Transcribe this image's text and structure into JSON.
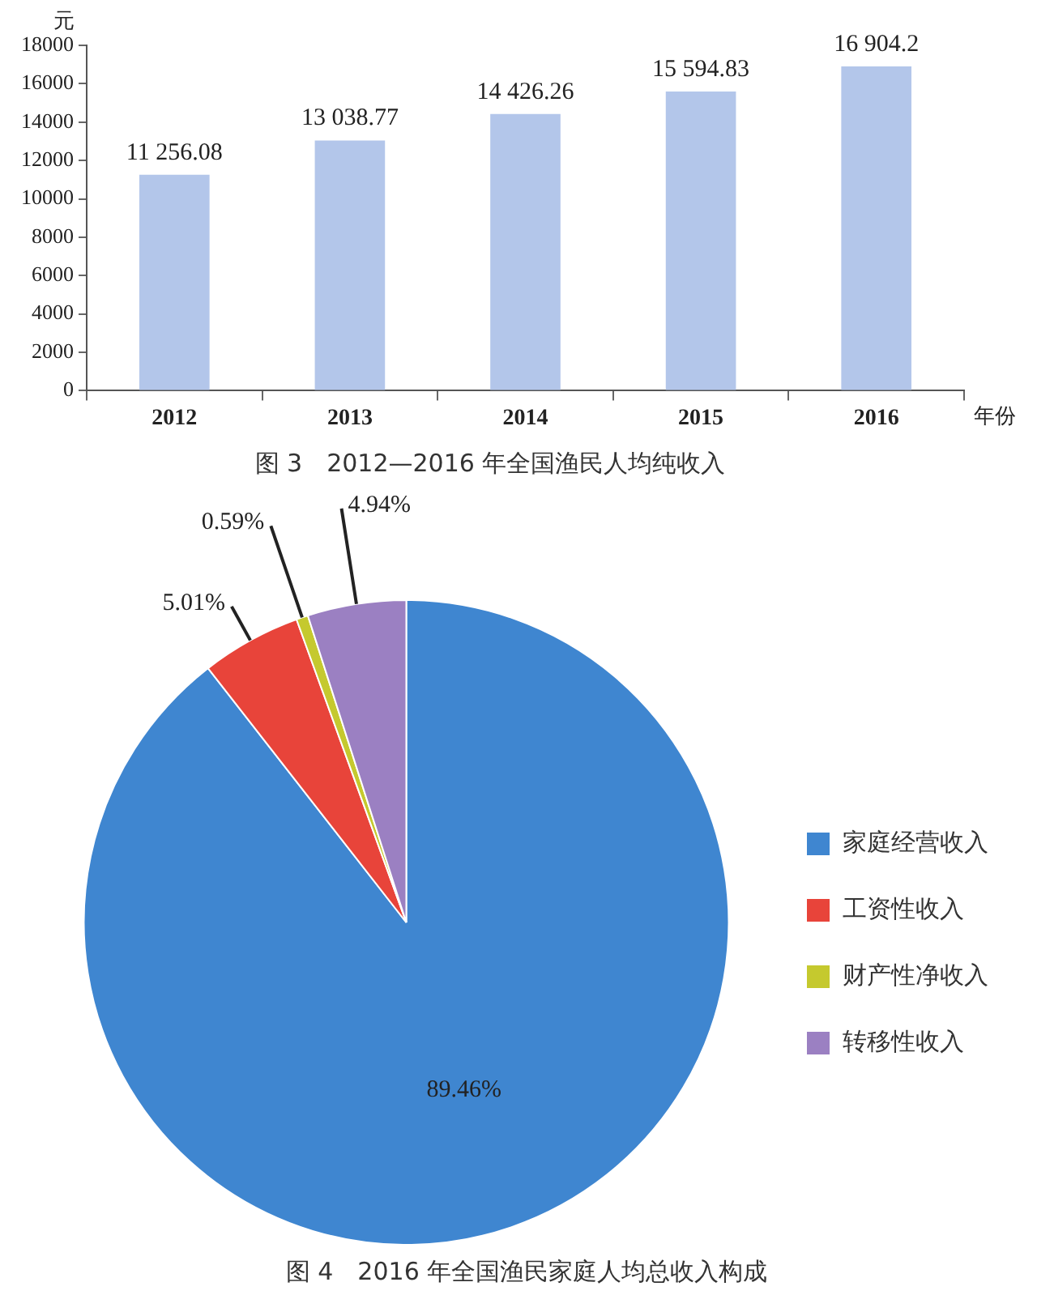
{
  "chart_data": [
    {
      "type": "bar",
      "title": "图 3　2012—2016 年全国渔民人均纯收入",
      "ylabel": "元",
      "xlabel": "年份",
      "categories": [
        "2012",
        "2013",
        "2014",
        "2015",
        "2016"
      ],
      "values": [
        11256.08,
        13038.77,
        14426.26,
        15594.83,
        16904.2
      ],
      "value_labels": [
        "11 256.08",
        "13 038.77",
        "14 426.26",
        "15 594.83",
        "16 904.2"
      ],
      "color": "#b3c6ea",
      "ylim": [
        0,
        18000
      ],
      "yticks": [
        0,
        2000,
        4000,
        6000,
        8000,
        10000,
        12000,
        14000,
        16000,
        18000
      ],
      "grid": false,
      "legend": false
    },
    {
      "type": "pie",
      "title": "图 4　2016 年全国渔民家庭人均总收入构成",
      "categories": [
        "家庭经营收入",
        "工资性收入",
        "财产性净收入",
        "转移性收入"
      ],
      "values": [
        89.46,
        5.01,
        0.59,
        4.94
      ],
      "value_labels": [
        "89.46%",
        "5.01%",
        "0.59%",
        "4.94%"
      ],
      "colors": [
        "#3f86d0",
        "#e8443a",
        "#c5c92e",
        "#9b80c2"
      ],
      "legend": "right"
    }
  ]
}
